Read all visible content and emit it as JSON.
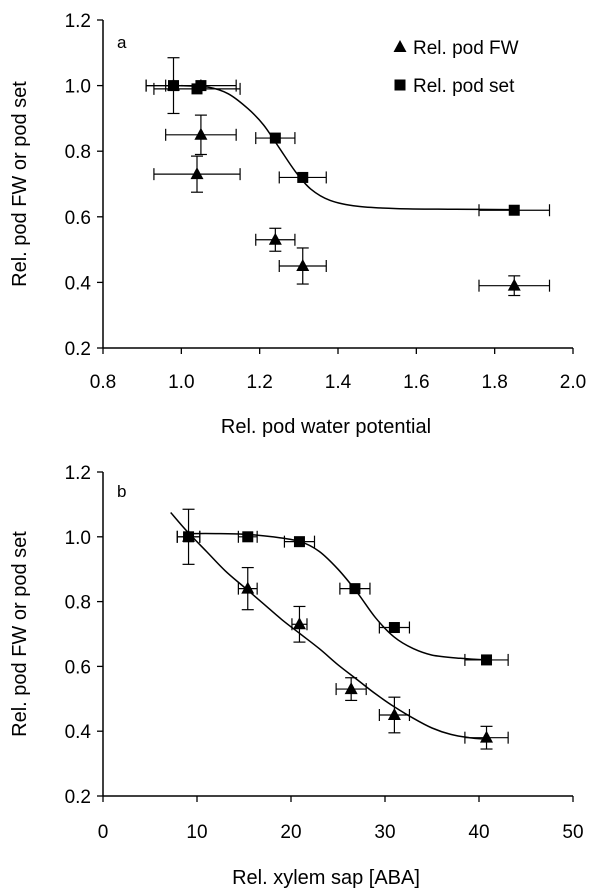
{
  "chart_data": [
    {
      "panel_label": "a",
      "type": "scatter",
      "xlabel": "Rel. pod water potential",
      "ylabel": "Rel. pod FW or pod set",
      "xlim": [
        0.8,
        2.0
      ],
      "ylim": [
        0.2,
        1.2
      ],
      "xticks": [
        0.8,
        1.0,
        1.2,
        1.4,
        1.6,
        1.8,
        2.0
      ],
      "xtick_labels": [
        "0.8",
        "1.0",
        "1.2",
        "1.4",
        "1.6",
        "1.8",
        "2.0"
      ],
      "yticks": [
        0.2,
        0.4,
        0.6,
        0.8,
        1.0,
        1.2
      ],
      "ytick_labels": [
        "0.2",
        "0.4",
        "0.6",
        "0.8",
        "1.0",
        "1.2"
      ],
      "legend_position": "top-right",
      "grid": false,
      "series": [
        {
          "name": "Rel. pod FW",
          "marker": "triangle",
          "points": [
            {
              "x": 0.98,
              "y": 1.0,
              "xerr": 0.07,
              "yerr": 0.085
            },
            {
              "x": 1.05,
              "y": 0.85,
              "xerr": 0.09,
              "yerr": 0.06
            },
            {
              "x": 1.04,
              "y": 0.73,
              "xerr": 0.11,
              "yerr": 0.055
            },
            {
              "x": 1.24,
              "y": 0.53,
              "xerr": 0.05,
              "yerr": 0.035
            },
            {
              "x": 1.31,
              "y": 0.45,
              "xerr": 0.06,
              "yerr": 0.055
            },
            {
              "x": 1.85,
              "y": 0.39,
              "xerr": 0.09,
              "yerr": 0.03
            }
          ]
        },
        {
          "name": "Rel. pod set",
          "marker": "square",
          "points": [
            {
              "x": 0.98,
              "y": 1.0,
              "xerr": 0.07,
              "yerr": 0.0
            },
            {
              "x": 1.04,
              "y": 0.99,
              "xerr": 0.11,
              "yerr": 0.0
            },
            {
              "x": 1.05,
              "y": 1.0,
              "xerr": 0.09,
              "yerr": 0.0
            },
            {
              "x": 1.24,
              "y": 0.84,
              "xerr": 0.05,
              "yerr": 0.0
            },
            {
              "x": 1.31,
              "y": 0.72,
              "xerr": 0.06,
              "yerr": 0.0
            },
            {
              "x": 1.85,
              "y": 0.62,
              "xerr": 0.09,
              "yerr": 0.0
            }
          ]
        }
      ],
      "fit_curves": [
        {
          "series": "Rel. pod set",
          "points": [
            [
              1.0,
              1.0
            ],
            [
              1.07,
              0.995
            ],
            [
              1.12,
              0.975
            ],
            [
              1.17,
              0.93
            ],
            [
              1.21,
              0.88
            ],
            [
              1.25,
              0.81
            ],
            [
              1.29,
              0.74
            ],
            [
              1.33,
              0.685
            ],
            [
              1.38,
              0.65
            ],
            [
              1.45,
              0.632
            ],
            [
              1.55,
              0.625
            ],
            [
              1.7,
              0.623
            ],
            [
              1.85,
              0.622
            ]
          ]
        }
      ]
    },
    {
      "panel_label": "b",
      "type": "scatter",
      "xlabel": "Rel. xylem sap [ABA]",
      "ylabel": "Rel. pod FW or pod set",
      "xlim": [
        0,
        50
      ],
      "ylim": [
        0.2,
        1.2
      ],
      "xticks": [
        0,
        10,
        20,
        30,
        40,
        50
      ],
      "xtick_labels": [
        "0",
        "10",
        "20",
        "30",
        "40",
        "50"
      ],
      "yticks": [
        0.2,
        0.4,
        0.6,
        0.8,
        1.0,
        1.2
      ],
      "ytick_labels": [
        "0.2",
        "0.4",
        "0.6",
        "0.8",
        "1.0",
        "1.2"
      ],
      "grid": false,
      "series": [
        {
          "name": "Rel. pod FW",
          "marker": "triangle",
          "points": [
            {
              "x": 9.1,
              "y": 1.0,
              "xerr": 1.2,
              "yerr": 0.085
            },
            {
              "x": 15.4,
              "y": 0.84,
              "xerr": 1.0,
              "yerr": 0.065
            },
            {
              "x": 20.9,
              "y": 0.73,
              "xerr": 0.8,
              "yerr": 0.055
            },
            {
              "x": 26.4,
              "y": 0.53,
              "xerr": 1.6,
              "yerr": 0.035
            },
            {
              "x": 31.0,
              "y": 0.45,
              "xerr": 1.6,
              "yerr": 0.055
            },
            {
              "x": 40.8,
              "y": 0.38,
              "xerr": 2.3,
              "yerr": 0.035
            }
          ]
        },
        {
          "name": "Rel. pod set",
          "marker": "square",
          "points": [
            {
              "x": 9.1,
              "y": 1.0,
              "xerr": 1.2,
              "yerr": 0.0
            },
            {
              "x": 15.4,
              "y": 1.0,
              "xerr": 1.0,
              "yerr": 0.0
            },
            {
              "x": 20.9,
              "y": 0.985,
              "xerr": 1.6,
              "yerr": 0.0
            },
            {
              "x": 26.8,
              "y": 0.84,
              "xerr": 1.6,
              "yerr": 0.0
            },
            {
              "x": 31.0,
              "y": 0.72,
              "xerr": 1.6,
              "yerr": 0.0
            },
            {
              "x": 40.8,
              "y": 0.62,
              "xerr": 2.3,
              "yerr": 0.0
            }
          ]
        }
      ],
      "fit_curves": [
        {
          "series": "Rel. pod FW",
          "points": [
            [
              7.2,
              1.075
            ],
            [
              9,
              1.015
            ],
            [
              11,
              0.955
            ],
            [
              13,
              0.895
            ],
            [
              15,
              0.845
            ],
            [
              17,
              0.795
            ],
            [
              19,
              0.745
            ],
            [
              21,
              0.7
            ],
            [
              23,
              0.655
            ],
            [
              25,
              0.605
            ],
            [
              27,
              0.56
            ],
            [
              29,
              0.515
            ],
            [
              31,
              0.475
            ],
            [
              33,
              0.44
            ],
            [
              35,
              0.41
            ],
            [
              37,
              0.39
            ],
            [
              39,
              0.38
            ],
            [
              40.8,
              0.375
            ]
          ]
        },
        {
          "series": "Rel. pod set",
          "points": [
            [
              9,
              1.01
            ],
            [
              12,
              1.01
            ],
            [
              15,
              1.008
            ],
            [
              18,
              1.0
            ],
            [
              21,
              0.985
            ],
            [
              23,
              0.955
            ],
            [
              25,
              0.9
            ],
            [
              27,
              0.83
            ],
            [
              29,
              0.75
            ],
            [
              31,
              0.69
            ],
            [
              33,
              0.655
            ],
            [
              35,
              0.635
            ],
            [
              38,
              0.625
            ],
            [
              40.8,
              0.62
            ]
          ]
        }
      ]
    }
  ]
}
